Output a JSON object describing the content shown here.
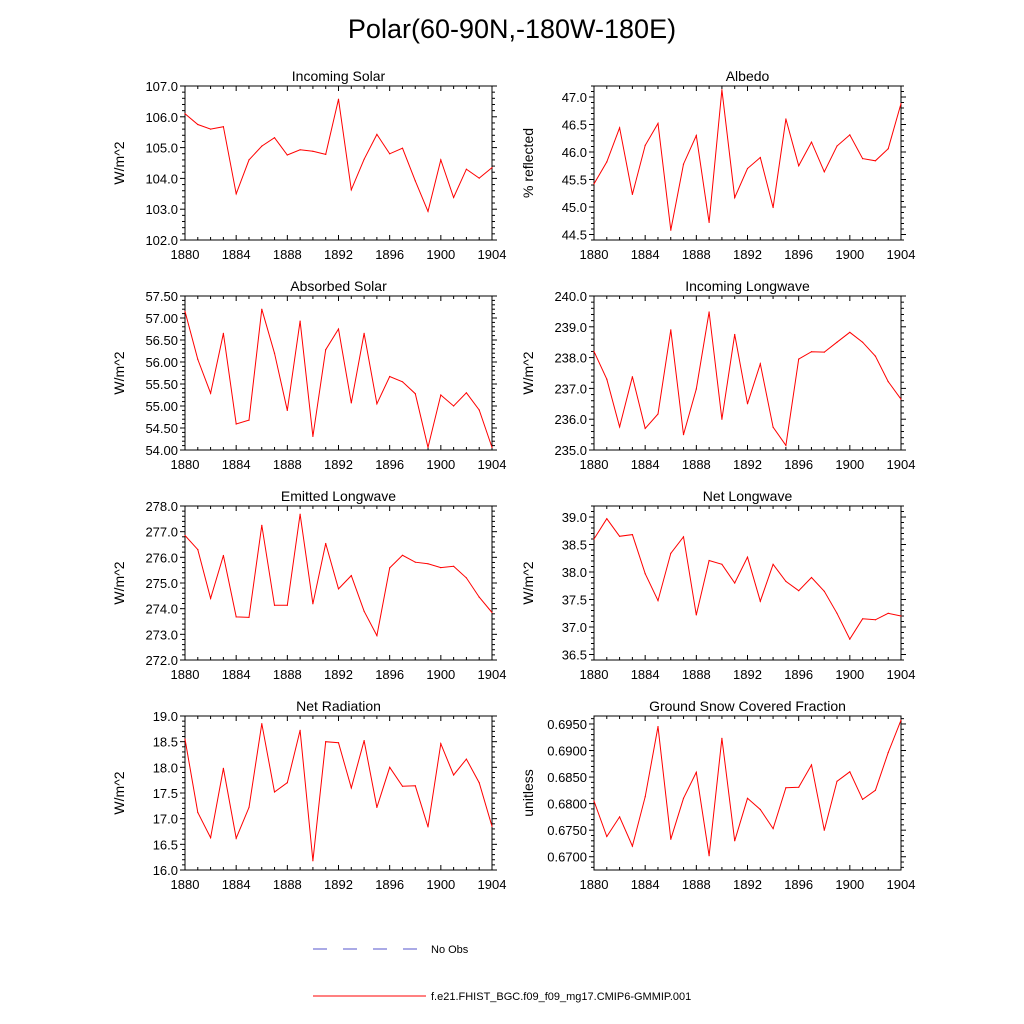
{
  "title": "Polar(60-90N,-180W-180E)",
  "colors": {
    "model": "#ff0000",
    "obs": "#5555cc",
    "axis": "#000000"
  },
  "legend": {
    "obs_label": "No Obs",
    "model_label": "f.e21.FHIST_BGC.f09_f09_mg17.CMIP6-GMMIP.001"
  },
  "chart_data": [
    {
      "type": "line",
      "title": "Incoming Solar",
      "ylabel": "W/m^2",
      "xlim": [
        1880,
        1904
      ],
      "xticks": [
        "1880",
        "1884",
        "1888",
        "1892",
        "1896",
        "1900",
        "1904"
      ],
      "ylim": [
        102.0,
        107.0
      ],
      "yticks": [
        "102.0",
        "103.0",
        "104.0",
        "105.0",
        "106.0",
        "107.0"
      ],
      "x": [
        1880,
        1881,
        1882,
        1883,
        1884,
        1885,
        1886,
        1887,
        1888,
        1889,
        1890,
        1891,
        1892,
        1893,
        1894,
        1895,
        1896,
        1897,
        1898,
        1899,
        1900,
        1901,
        1902,
        1903,
        1904
      ],
      "values": [
        106.1,
        105.75,
        105.6,
        105.68,
        103.5,
        104.6,
        105.05,
        105.32,
        104.76,
        104.93,
        104.88,
        104.78,
        106.57,
        103.63,
        104.62,
        105.43,
        104.8,
        104.98,
        103.92,
        102.93,
        104.6,
        103.38,
        104.3,
        104.01,
        104.35
      ]
    },
    {
      "type": "line",
      "title": "Albedo",
      "ylabel": "% reflected",
      "xlim": [
        1880,
        1904
      ],
      "xticks": [
        "1880",
        "1884",
        "1888",
        "1892",
        "1896",
        "1900",
        "1904"
      ],
      "ylim": [
        44.4,
        47.2
      ],
      "yticks": [
        "44.5",
        "45.0",
        "45.5",
        "46.0",
        "46.5",
        "47.0"
      ],
      "x": [
        1880,
        1881,
        1882,
        1883,
        1884,
        1885,
        1886,
        1887,
        1888,
        1889,
        1890,
        1891,
        1892,
        1893,
        1894,
        1895,
        1896,
        1897,
        1898,
        1899,
        1900,
        1901,
        1902,
        1903,
        1904
      ],
      "values": [
        45.42,
        45.82,
        46.44,
        45.23,
        46.12,
        46.52,
        44.58,
        45.78,
        46.3,
        44.72,
        47.13,
        45.17,
        45.7,
        45.9,
        44.99,
        46.6,
        45.75,
        46.18,
        45.64,
        46.11,
        46.31,
        45.88,
        45.84,
        46.06,
        46.88
      ]
    },
    {
      "type": "line",
      "title": "Absorbed Solar",
      "ylabel": "W/m^2",
      "xlim": [
        1880,
        1904
      ],
      "xticks": [
        "1880",
        "1884",
        "1888",
        "1892",
        "1896",
        "1900",
        "1904"
      ],
      "ylim": [
        54.0,
        57.5
      ],
      "yticks": [
        "54.00",
        "54.50",
        "55.00",
        "55.50",
        "56.00",
        "56.50",
        "57.00",
        "57.50"
      ],
      "x": [
        1880,
        1881,
        1882,
        1883,
        1884,
        1885,
        1886,
        1887,
        1888,
        1889,
        1890,
        1891,
        1892,
        1893,
        1894,
        1895,
        1896,
        1897,
        1898,
        1899,
        1900,
        1901,
        1902,
        1903,
        1904
      ],
      "values": [
        57.15,
        56.06,
        55.29,
        56.65,
        54.59,
        54.68,
        57.2,
        56.2,
        54.9,
        56.93,
        54.31,
        56.28,
        56.75,
        55.07,
        56.65,
        55.05,
        55.67,
        55.55,
        55.28,
        54.06,
        55.25,
        55.0,
        55.3,
        54.91,
        54.06
      ]
    },
    {
      "type": "line",
      "title": "Incoming Longwave",
      "ylabel": "W/m^2",
      "xlim": [
        1880,
        1904
      ],
      "xticks": [
        "1880",
        "1884",
        "1888",
        "1892",
        "1896",
        "1900",
        "1904"
      ],
      "ylim": [
        235.0,
        240.0
      ],
      "yticks": [
        "235.0",
        "236.0",
        "237.0",
        "238.0",
        "239.0",
        "240.0"
      ],
      "x": [
        1880,
        1881,
        1882,
        1883,
        1884,
        1885,
        1886,
        1887,
        1888,
        1889,
        1890,
        1891,
        1892,
        1893,
        1894,
        1895,
        1896,
        1897,
        1898,
        1899,
        1900,
        1901,
        1902,
        1903,
        1904
      ],
      "values": [
        238.2,
        237.3,
        235.75,
        237.38,
        235.7,
        236.17,
        238.9,
        235.5,
        236.98,
        239.48,
        236.0,
        238.75,
        236.5,
        237.8,
        235.74,
        235.15,
        237.95,
        238.19,
        238.18,
        238.5,
        238.82,
        238.5,
        238.05,
        237.22,
        236.65
      ]
    },
    {
      "type": "line",
      "title": "Emitted Longwave",
      "ylabel": "W/m^2",
      "xlim": [
        1880,
        1904
      ],
      "xticks": [
        "1880",
        "1884",
        "1888",
        "1892",
        "1896",
        "1900",
        "1904"
      ],
      "ylim": [
        272.0,
        278.0
      ],
      "yticks": [
        "272.0",
        "273.0",
        "274.0",
        "275.0",
        "276.0",
        "277.0",
        "278.0"
      ],
      "x": [
        1880,
        1881,
        1882,
        1883,
        1884,
        1885,
        1886,
        1887,
        1888,
        1889,
        1890,
        1891,
        1892,
        1893,
        1894,
        1895,
        1896,
        1897,
        1898,
        1899,
        1900,
        1901,
        1902,
        1903,
        1904
      ],
      "values": [
        276.85,
        276.3,
        274.4,
        276.07,
        273.68,
        273.66,
        277.25,
        274.13,
        274.13,
        277.68,
        274.19,
        276.54,
        274.77,
        275.29,
        273.9,
        272.95,
        275.59,
        276.08,
        275.81,
        275.75,
        275.6,
        275.65,
        275.2,
        274.45,
        273.85
      ]
    },
    {
      "type": "line",
      "title": "Net Longwave",
      "ylabel": "W/m^2",
      "xlim": [
        1880,
        1904
      ],
      "xticks": [
        "1880",
        "1884",
        "1888",
        "1892",
        "1896",
        "1900",
        "1904"
      ],
      "ylim": [
        36.4,
        39.2
      ],
      "yticks": [
        "36.5",
        "37.0",
        "37.5",
        "38.0",
        "38.5",
        "39.0"
      ],
      "x": [
        1880,
        1881,
        1882,
        1883,
        1884,
        1885,
        1886,
        1887,
        1888,
        1889,
        1890,
        1891,
        1892,
        1893,
        1894,
        1895,
        1896,
        1897,
        1898,
        1899,
        1900,
        1901,
        1902,
        1903,
        1904
      ],
      "values": [
        38.6,
        38.97,
        38.65,
        38.68,
        37.97,
        37.48,
        38.34,
        38.64,
        37.22,
        38.21,
        38.14,
        37.8,
        38.27,
        37.47,
        38.14,
        37.83,
        37.66,
        37.9,
        37.65,
        37.25,
        36.78,
        37.15,
        37.13,
        37.25,
        37.2
      ]
    },
    {
      "type": "line",
      "title": "Net Radiation",
      "ylabel": "W/m^2",
      "xlim": [
        1880,
        1904
      ],
      "xticks": [
        "1880",
        "1884",
        "1888",
        "1892",
        "1896",
        "1900",
        "1904"
      ],
      "ylim": [
        16.0,
        19.0
      ],
      "yticks": [
        "16.0",
        "16.5",
        "17.0",
        "17.5",
        "18.0",
        "18.5",
        "19.0"
      ],
      "x": [
        1880,
        1881,
        1882,
        1883,
        1884,
        1885,
        1886,
        1887,
        1888,
        1889,
        1890,
        1891,
        1892,
        1893,
        1894,
        1895,
        1896,
        1897,
        1898,
        1899,
        1900,
        1901,
        1902,
        1903,
        1904
      ],
      "values": [
        18.55,
        17.12,
        16.63,
        17.98,
        16.62,
        17.22,
        18.85,
        17.52,
        17.7,
        18.72,
        16.18,
        18.5,
        18.48,
        17.6,
        18.52,
        17.22,
        18.0,
        17.63,
        17.64,
        16.84,
        18.46,
        17.85,
        18.16,
        17.7,
        16.85
      ]
    },
    {
      "type": "line",
      "title": "Ground Snow Covered Fraction",
      "ylabel": "unitless",
      "xlim": [
        1880,
        1904
      ],
      "xticks": [
        "1880",
        "1884",
        "1888",
        "1892",
        "1896",
        "1900",
        "1904"
      ],
      "ylim": [
        0.6675,
        0.6965
      ],
      "yticks": [
        "0.6700",
        "0.6750",
        "0.6800",
        "0.6850",
        "0.6900",
        "0.6950"
      ],
      "x": [
        1880,
        1881,
        1882,
        1883,
        1884,
        1885,
        1886,
        1887,
        1888,
        1889,
        1890,
        1891,
        1892,
        1893,
        1894,
        1895,
        1896,
        1897,
        1898,
        1899,
        1900,
        1901,
        1902,
        1903,
        1904
      ],
      "values": [
        0.6805,
        0.6738,
        0.6775,
        0.672,
        0.6813,
        0.6945,
        0.6733,
        0.681,
        0.6859,
        0.6702,
        0.6923,
        0.673,
        0.681,
        0.6789,
        0.6753,
        0.683,
        0.6831,
        0.6873,
        0.675,
        0.6842,
        0.686,
        0.6808,
        0.6825,
        0.6896,
        0.6957
      ]
    }
  ]
}
